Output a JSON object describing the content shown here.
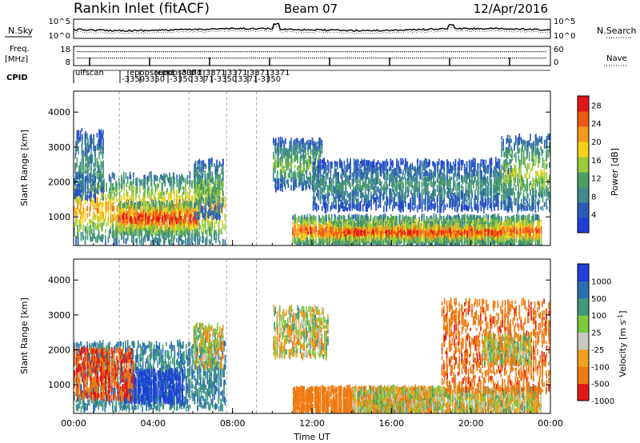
{
  "header": {
    "radar_title": "Rankin Inlet (fitACF)",
    "beam": "Beam 07",
    "date": "12/Apr/2016"
  },
  "noise_panel": {
    "left_label": "N.Sky",
    "right_label": "N.Search",
    "left_ticks": [
      "10^5",
      "10^0"
    ],
    "right_ticks": [
      "10^5",
      "10^0"
    ]
  },
  "freq_panel": {
    "left_label_1": "Freq.",
    "left_label_2": "[MHz]",
    "right_label": "Nave",
    "left_ticks": [
      "18",
      "8"
    ],
    "right_ticks": [
      "60",
      "0"
    ]
  },
  "cpid_panel": {
    "label": "CPID",
    "texts": [
      "ulfscan",
      "-3350",
      "epopsound",
      "-3350",
      "epopsound",
      "-3350",
      "3371",
      "3371",
      "3371",
      "-3350",
      "3371",
      "3371",
      "3371",
      "-3350",
      "3371"
    ]
  },
  "colors": {
    "power_scale": [
      "#1f3fd8",
      "#2a5cb8",
      "#3f8a8a",
      "#4aa060",
      "#9ccc3a",
      "#f2d21a",
      "#f59a1a",
      "#ef5a12",
      "#e01818"
    ],
    "velocity_scale": [
      "#1f3fd8",
      "#2a6fb0",
      "#3f9a7a",
      "#7acc3a",
      "#c8c8c0",
      "#f2a21a",
      "#ef7a12",
      "#e01818"
    ]
  },
  "chart_data": [
    {
      "type": "heatmap",
      "quantity": "Power",
      "xlabel": "",
      "ylabel": "Slant Range [km]",
      "x_ticks": [
        "00:00",
        "04:00",
        "08:00",
        "12:00",
        "16:00",
        "20:00",
        "00:00"
      ],
      "xlim_hours": [
        0,
        24
      ],
      "y_ticks": [
        1000,
        2000,
        3000,
        4000
      ],
      "ylim_km": [
        180,
        4600
      ],
      "colorbar_label": "Power [dB]",
      "colorbar_ticks": [
        4,
        8,
        12,
        16,
        20,
        24,
        28
      ],
      "colorbar_range": [
        0,
        30
      ],
      "blobs": [
        {
          "t0": 0.0,
          "t1": 7.6,
          "r0": 250,
          "r1": 2200,
          "peak": 22
        },
        {
          "t0": 2.2,
          "t1": 6.2,
          "r0": 500,
          "r1": 1400,
          "peak": 29
        },
        {
          "t0": 6.0,
          "t1": 7.5,
          "r0": 1000,
          "r1": 2600,
          "peak": 14
        },
        {
          "t0": 10.0,
          "t1": 12.5,
          "r0": 1800,
          "r1": 3200,
          "peak": 14
        },
        {
          "t0": 11.0,
          "t1": 23.5,
          "r0": 200,
          "r1": 1000,
          "peak": 26
        },
        {
          "t0": 13.0,
          "t1": 21.5,
          "r0": 300,
          "r1": 800,
          "peak": 29
        },
        {
          "t0": 12.0,
          "t1": 22.0,
          "r0": 1200,
          "r1": 2600,
          "peak": 10
        },
        {
          "t0": 21.5,
          "t1": 24.0,
          "r0": 1200,
          "r1": 3300,
          "peak": 16
        },
        {
          "t0": 0.0,
          "t1": 1.5,
          "r0": 1500,
          "r1": 3500,
          "peak": 10
        }
      ]
    },
    {
      "type": "heatmap",
      "quantity": "Velocity",
      "xlabel": "Time UT",
      "ylabel": "Slant Range [km]",
      "x_ticks": [
        "00:00",
        "04:00",
        "08:00",
        "12:00",
        "16:00",
        "20:00",
        "00:00"
      ],
      "xlim_hours": [
        0,
        24
      ],
      "y_ticks": [
        1000,
        2000,
        3000,
        4000
      ],
      "ylim_km": [
        180,
        4600
      ],
      "colorbar_label": "Velocity [m s^-1]",
      "colorbar_ticks": [
        1000,
        500,
        100,
        25,
        -25,
        -100,
        -500,
        -1000
      ],
      "blobs": [
        {
          "t0": 0.0,
          "t1": 7.6,
          "r0": 300,
          "r1": 2200,
          "vel": 300
        },
        {
          "t0": 2.5,
          "t1": 5.5,
          "r0": 500,
          "r1": 1400,
          "vel": 800
        },
        {
          "t0": 0.0,
          "t1": 3.0,
          "r0": 600,
          "r1": 2000,
          "vel": -500
        },
        {
          "t0": 6.0,
          "t1": 7.5,
          "r0": 1500,
          "r1": 2700,
          "vel": 0
        },
        {
          "t0": 10.0,
          "t1": 12.8,
          "r0": 1800,
          "r1": 3200,
          "vel": 0
        },
        {
          "t0": 11.0,
          "t1": 18.0,
          "r0": 200,
          "r1": 900,
          "vel": -300
        },
        {
          "t0": 14.0,
          "t1": 23.5,
          "r0": 200,
          "r1": 900,
          "vel": 0
        },
        {
          "t0": 18.5,
          "t1": 24.0,
          "r0": 800,
          "r1": 3400,
          "vel": -400
        },
        {
          "t0": 20.5,
          "t1": 23.0,
          "r0": 1600,
          "r1": 2400,
          "vel": 0
        }
      ]
    }
  ]
}
